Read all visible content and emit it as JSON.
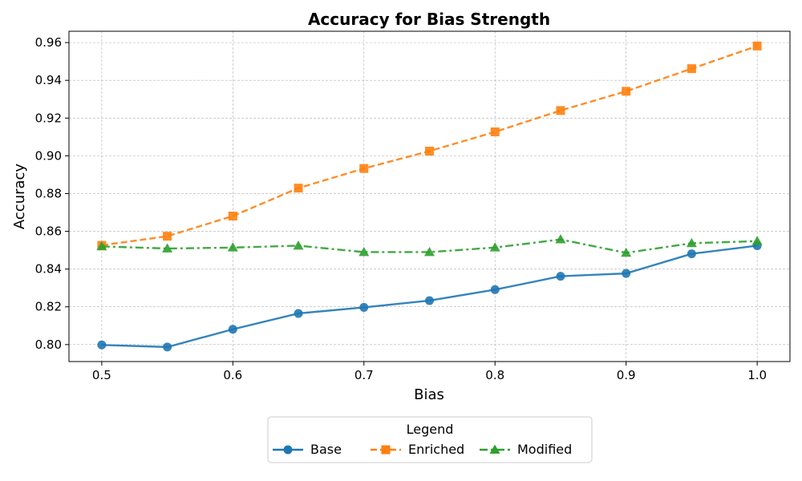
{
  "chart_data": {
    "type": "line",
    "title": "Accuracy for Bias Strength",
    "xlabel": "Bias",
    "ylabel": "Accuracy",
    "xlim": [
      0.475,
      1.025
    ],
    "ylim": [
      0.791,
      0.966
    ],
    "xticks": [
      0.5,
      0.6,
      0.7,
      0.8,
      0.9,
      1.0
    ],
    "xtick_labels": [
      "0.5",
      "0.6",
      "0.7",
      "0.8",
      "0.9",
      "1.0"
    ],
    "yticks": [
      0.8,
      0.82,
      0.84,
      0.86,
      0.88,
      0.9,
      0.92,
      0.94,
      0.96
    ],
    "ytick_labels": [
      "0.80",
      "0.82",
      "0.84",
      "0.86",
      "0.88",
      "0.90",
      "0.92",
      "0.94",
      "0.96"
    ],
    "grid": true,
    "legend": {
      "title": "Legend",
      "placement": "bottom-center"
    },
    "x": [
      0.5,
      0.55,
      0.6,
      0.65,
      0.7,
      0.75,
      0.8,
      0.85,
      0.9,
      0.95,
      1.0
    ],
    "series": [
      {
        "name": "Base",
        "color": "#1f77b4",
        "marker": "circle",
        "linestyle": "solid",
        "values": [
          0.7998,
          0.7987,
          0.8081,
          0.8165,
          0.8197,
          0.8233,
          0.8291,
          0.8362,
          0.8377,
          0.8481,
          0.8524
        ]
      },
      {
        "name": "Enriched",
        "color": "#ff7f0e",
        "marker": "square",
        "linestyle": "dashed",
        "values": [
          0.8526,
          0.8574,
          0.8681,
          0.8829,
          0.8933,
          0.9025,
          0.9127,
          0.924,
          0.9342,
          0.9462,
          0.9582
        ]
      },
      {
        "name": "Modified",
        "color": "#2ca02c",
        "marker": "triangle",
        "linestyle": "dashdot",
        "values": [
          0.852,
          0.8509,
          0.8514,
          0.8524,
          0.849,
          0.849,
          0.8514,
          0.8557,
          0.8486,
          0.8537,
          0.8548
        ]
      }
    ]
  }
}
